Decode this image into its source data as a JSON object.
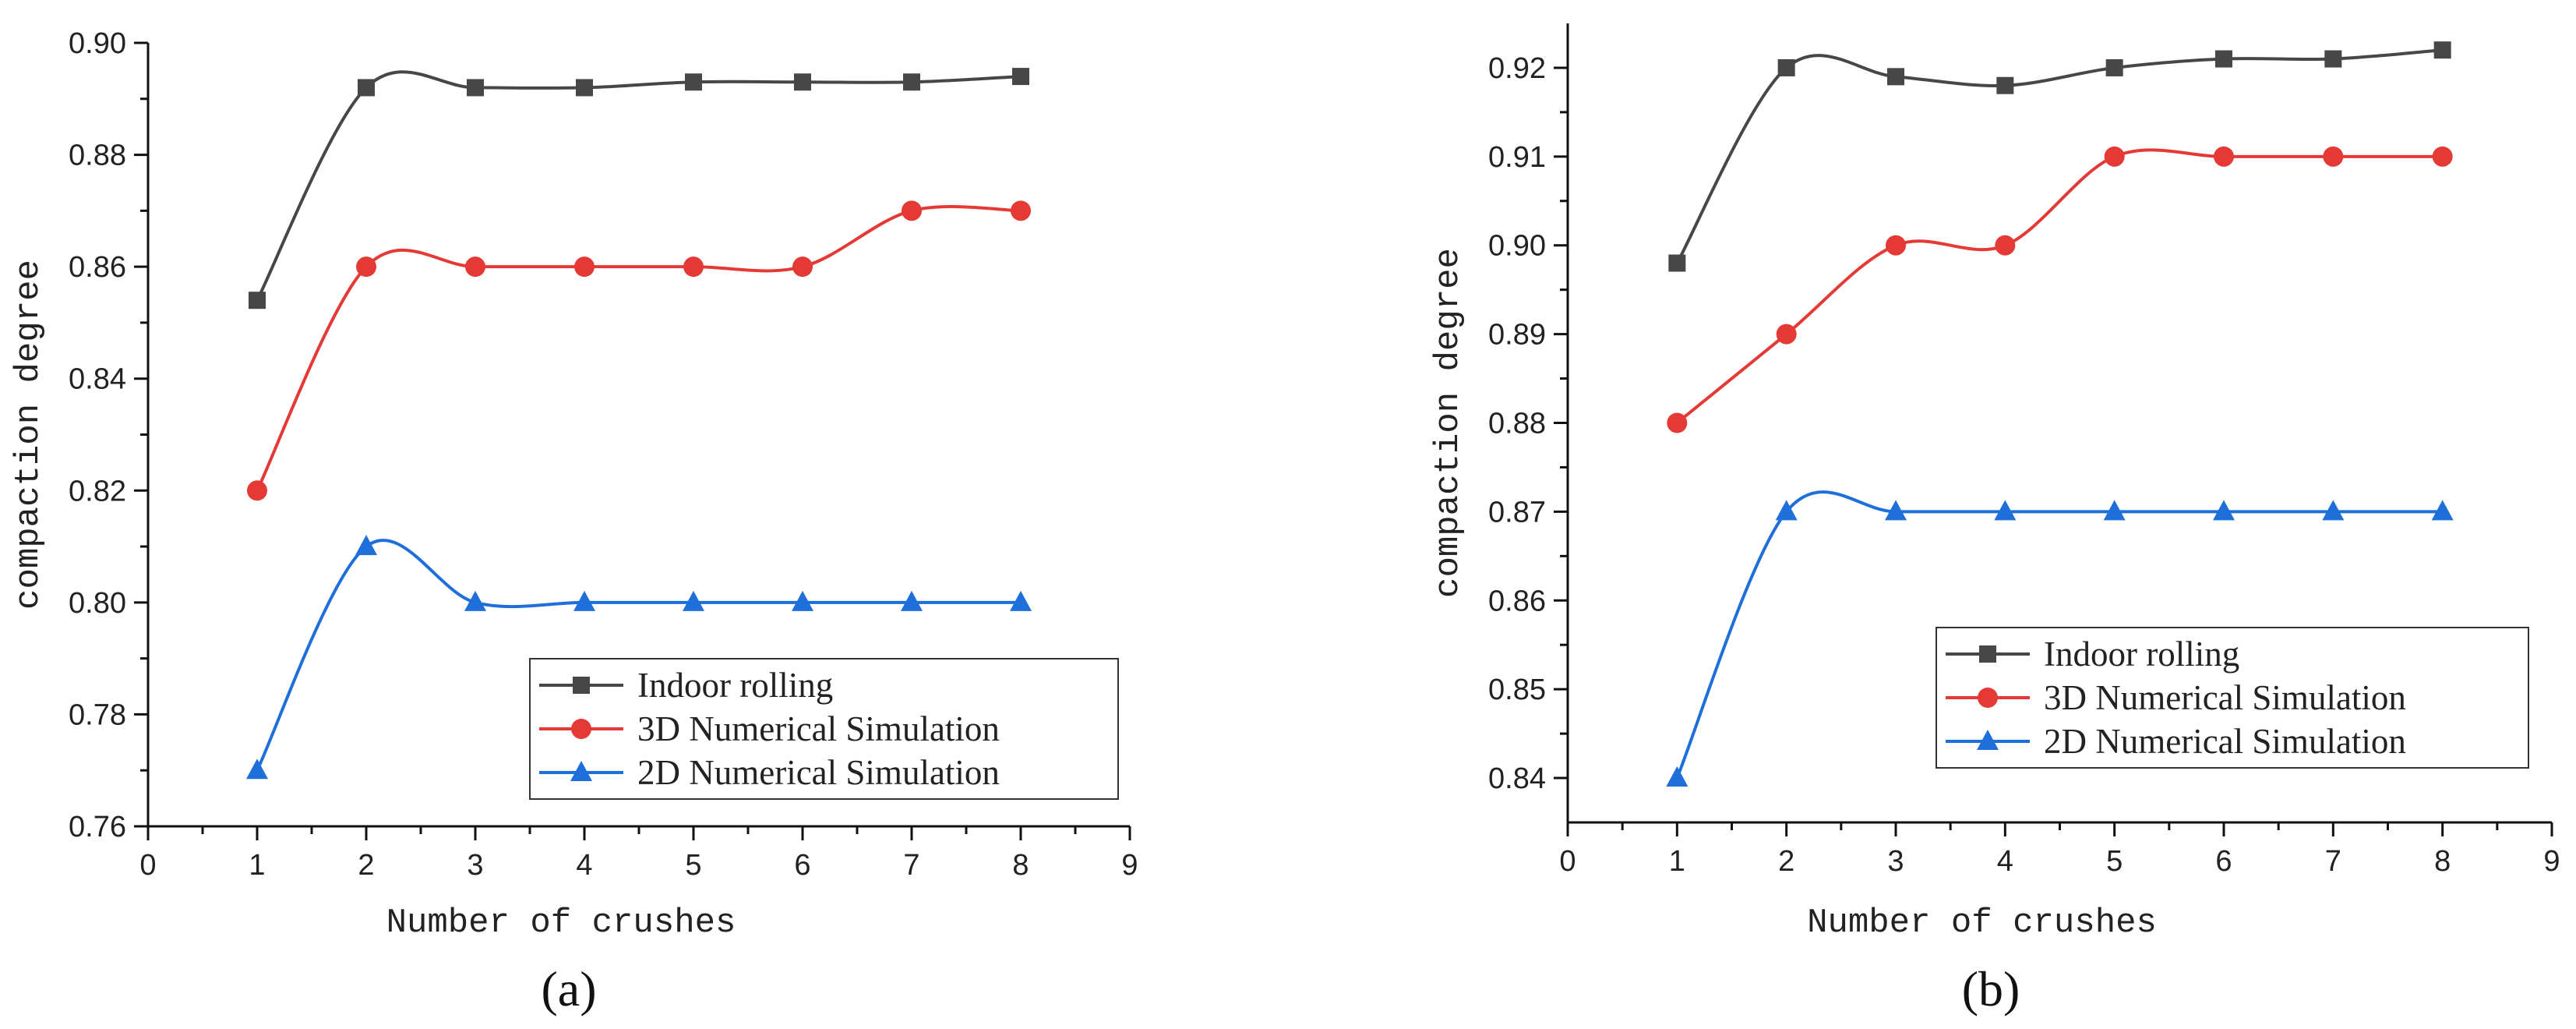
{
  "chart_data": [
    {
      "type": "line",
      "panel_label": "(a)",
      "xlabel": "Number of crushes",
      "ylabel": "compaction degree",
      "xlim": [
        0,
        9
      ],
      "ylim": [
        0.76,
        0.9
      ],
      "xticks": [
        "0",
        "1",
        "2",
        "3",
        "4",
        "5",
        "6",
        "7",
        "8",
        "9"
      ],
      "yticks": [
        "0.76",
        "0.78",
        "0.80",
        "0.82",
        "0.84",
        "0.86",
        "0.88",
        "0.90"
      ],
      "grid": false,
      "legend_position": "bottom-right",
      "x": [
        1,
        2,
        3,
        4,
        5,
        6,
        7,
        8
      ],
      "series": [
        {
          "name": "Indoor rolling",
          "marker": "square",
          "color": "#474747",
          "values": [
            0.854,
            0.892,
            0.892,
            0.892,
            0.893,
            0.893,
            0.893,
            0.894
          ]
        },
        {
          "name": "3D Numerical Simulation",
          "marker": "circle",
          "color": "#e53935",
          "values": [
            0.82,
            0.86,
            0.86,
            0.86,
            0.86,
            0.86,
            0.87,
            0.87
          ]
        },
        {
          "name": "2D Numerical Simulation",
          "marker": "triangle",
          "color": "#1e6fd9",
          "values": [
            0.77,
            0.81,
            0.8,
            0.8,
            0.8,
            0.8,
            0.8,
            0.8
          ]
        }
      ]
    },
    {
      "type": "line",
      "panel_label": "(b)",
      "xlabel": "Number of crushes",
      "ylabel": "compaction degree",
      "xlim": [
        0,
        9
      ],
      "ylim": [
        0.835,
        0.925
      ],
      "xticks": [
        "0",
        "1",
        "2",
        "3",
        "4",
        "5",
        "6",
        "7",
        "8",
        "9"
      ],
      "yticks": [
        "0.84",
        "0.85",
        "0.86",
        "0.87",
        "0.88",
        "0.89",
        "0.90",
        "0.91",
        "0.92"
      ],
      "grid": false,
      "legend_position": "bottom-right",
      "x": [
        1,
        2,
        3,
        4,
        5,
        6,
        7,
        8
      ],
      "series": [
        {
          "name": "Indoor rolling",
          "marker": "square",
          "color": "#474747",
          "values": [
            0.898,
            0.92,
            0.919,
            0.918,
            0.92,
            0.921,
            0.921,
            0.922
          ]
        },
        {
          "name": "3D Numerical Simulation",
          "marker": "circle",
          "color": "#e53935",
          "values": [
            0.88,
            0.89,
            0.9,
            0.9,
            0.91,
            0.91,
            0.91,
            0.91
          ]
        },
        {
          "name": "2D Numerical Simulation",
          "marker": "triangle",
          "color": "#1e6fd9",
          "values": [
            0.84,
            0.87,
            0.87,
            0.87,
            0.87,
            0.87,
            0.87,
            0.87
          ]
        }
      ]
    }
  ]
}
